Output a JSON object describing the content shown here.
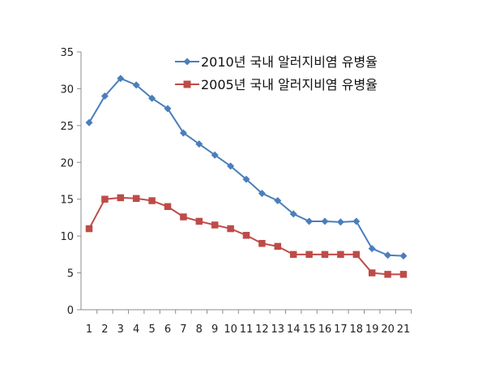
{
  "chart_data": {
    "type": "line",
    "x": [
      "1",
      "2",
      "3",
      "4",
      "5",
      "6",
      "7",
      "8",
      "9",
      "10",
      "11",
      "12",
      "13",
      "14",
      "15",
      "16",
      "17",
      "18",
      "19",
      "20",
      "21"
    ],
    "series": [
      {
        "name": "2010년 국내 알러지비염 유병율",
        "color": "#4a7ebb",
        "marker": "diamond",
        "values": [
          25.4,
          29.0,
          31.4,
          30.5,
          28.7,
          27.3,
          24.0,
          22.5,
          21.0,
          19.5,
          17.7,
          15.8,
          14.8,
          13.0,
          12.0,
          12.0,
          11.9,
          12.0,
          8.3,
          7.4,
          7.3
        ]
      },
      {
        "name": "2005년 국내 알러지비염 유병율",
        "color": "#be4b48",
        "marker": "square",
        "values": [
          11.0,
          15.0,
          15.2,
          15.1,
          14.8,
          14.0,
          12.6,
          12.0,
          11.5,
          11.0,
          10.1,
          9.0,
          8.6,
          7.5,
          7.5,
          7.5,
          7.5,
          7.5,
          5.0,
          4.8,
          4.8
        ]
      }
    ],
    "yticks": [
      "0",
      "5",
      "10",
      "15",
      "20",
      "25",
      "30",
      "35"
    ],
    "ylim": [
      0,
      35
    ],
    "grid": false,
    "legend_position": "top-right"
  }
}
